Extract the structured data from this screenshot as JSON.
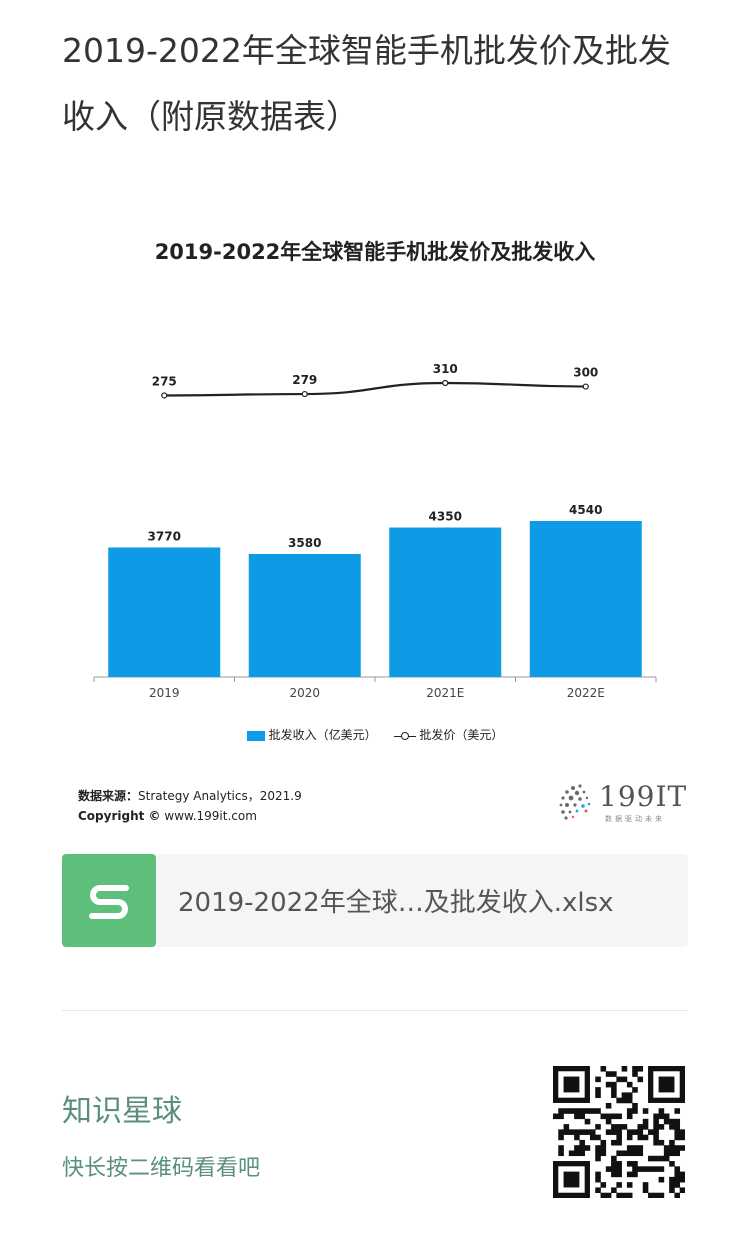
{
  "article": {
    "title": "2019-2022年全球智能手机批发价及批发收入（附原数据表）"
  },
  "chart_data": {
    "type": "bar",
    "title": "2019-2022年全球智能手机批发价及批发收入",
    "categories": [
      "2019",
      "2020",
      "2021E",
      "2022E"
    ],
    "series": [
      {
        "name": "批发收入（亿美元）",
        "type": "bar",
        "values": [
          3770,
          3580,
          4350,
          4540
        ],
        "color": "#0d9be6"
      },
      {
        "name": "批发价（美元）",
        "type": "line",
        "values": [
          275,
          279,
          310,
          300
        ],
        "color": "#222222"
      }
    ],
    "bar_ylim": [
      0,
      4540
    ],
    "line_ylim": [
      150,
      310
    ],
    "legend_position": "bottom",
    "grid": false
  },
  "legend": {
    "bar_label": "批发收入（亿美元）",
    "line_label": "批发价（美元）"
  },
  "source": {
    "label": "数据来源：",
    "value": "Strategy Analytics，2021.9",
    "copyright_label": "Copyright ©",
    "copyright_value": "www.199it.com"
  },
  "logo": {
    "text": "199IT",
    "subtitle": "数据驱动未来"
  },
  "attachment": {
    "icon": "spreadsheet-s-icon",
    "file_name": "2019-2022年全球…及批发收入.xlsx"
  },
  "footer": {
    "title": "知识星球",
    "subtitle": "快长按二维码看看吧"
  },
  "colors": {
    "bar": "#0d9be6",
    "file_icon": "#5dbf7a",
    "footer_text": "#5a8f7e"
  }
}
